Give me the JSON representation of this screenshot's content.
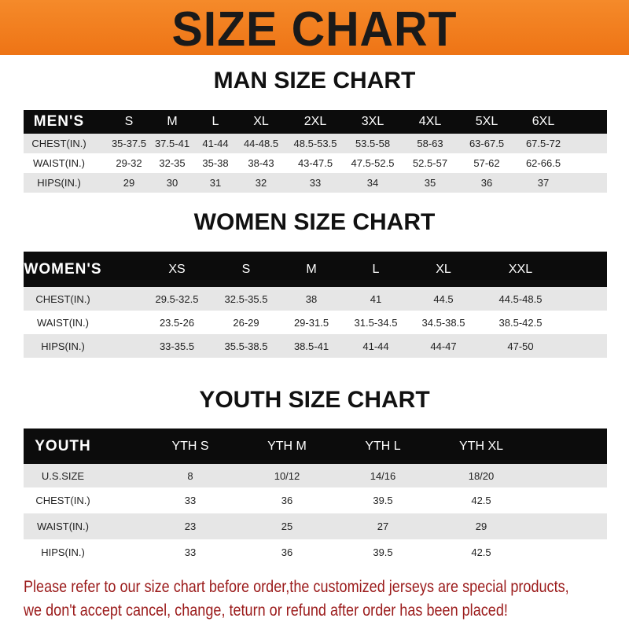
{
  "title": "SIZE CHART",
  "colors": {
    "banner": "#f07a1a",
    "header_row": "#0c0c0c",
    "note_text": "#9b1b1b"
  },
  "men": {
    "title": "MAN SIZE CHART",
    "header": [
      "MEN'S",
      "S",
      "M",
      "L",
      "XL",
      "2XL",
      "3XL",
      "4XL",
      "5XL",
      "6XL"
    ],
    "rows": [
      [
        "CHEST(IN.)",
        "35-37.5",
        "37.5-41",
        "41-44",
        "44-48.5",
        "48.5-53.5",
        "53.5-58",
        "58-63",
        "63-67.5",
        "67.5-72"
      ],
      [
        "WAIST(IN.)",
        "29-32",
        "32-35",
        "35-38",
        "38-43",
        "43-47.5",
        "47.5-52.5",
        "52.5-57",
        "57-62",
        "62-66.5"
      ],
      [
        "HIPS(IN.)",
        "29",
        "30",
        "31",
        "32",
        "33",
        "34",
        "35",
        "36",
        "37"
      ]
    ]
  },
  "women": {
    "title": "WOMEN SIZE CHART",
    "header": [
      "WOMEN'S",
      "XS",
      "S",
      "M",
      "L",
      "XL",
      "XXL"
    ],
    "rows": [
      [
        "CHEST(IN.)",
        "29.5-32.5",
        "32.5-35.5",
        "38",
        "41",
        "44.5",
        "44.5-48.5"
      ],
      [
        "WAIST(IN.)",
        "23.5-26",
        "26-29",
        "29-31.5",
        "31.5-34.5",
        "34.5-38.5",
        "38.5-42.5"
      ],
      [
        "HIPS(IN.)",
        "33-35.5",
        "35.5-38.5",
        "38.5-41",
        "41-44",
        "44-47",
        "47-50"
      ]
    ]
  },
  "youth": {
    "title": "YOUTH SIZE CHART",
    "header": [
      "YOUTH",
      "YTH S",
      "YTH M",
      "YTH L",
      "YTH XL"
    ],
    "rows": [
      [
        "U.S.SIZE",
        "8",
        "10/12",
        "14/16",
        "18/20"
      ],
      [
        "CHEST(IN.)",
        "33",
        "36",
        "39.5",
        "42.5"
      ],
      [
        "WAIST(IN.)",
        "23",
        "25",
        "27",
        "29"
      ],
      [
        "HIPS(IN.)",
        "33",
        "36",
        "39.5",
        "42.5"
      ]
    ]
  },
  "note": {
    "line1": "Please refer to our size chart before order,the customized jerseys are special products,",
    "line2": "we don't accept cancel, change, teturn or refund after order has been placed!"
  }
}
